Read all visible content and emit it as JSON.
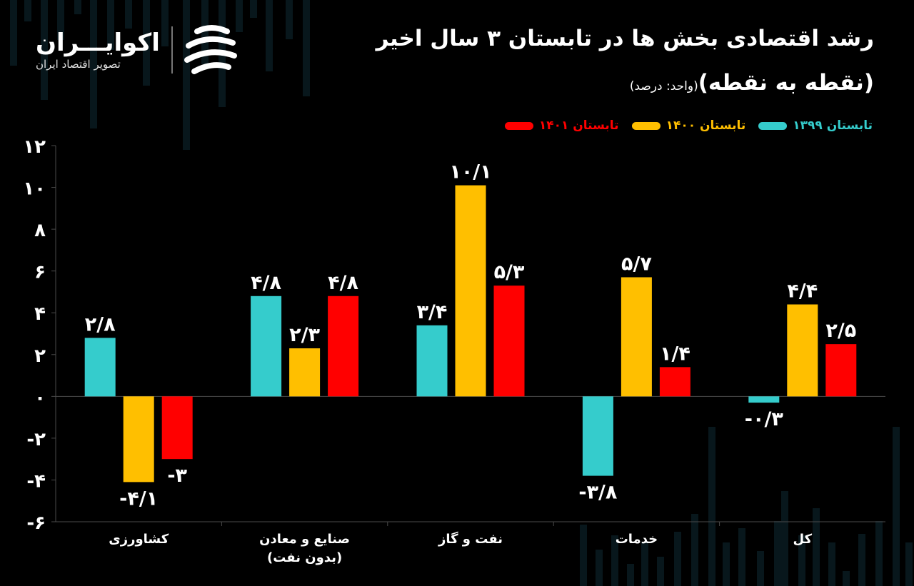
{
  "title": "رشد اقتصادی بخش ها در تابستان ۳ سال اخیر",
  "subtitle_main": "(نقطه به نقطه)",
  "subtitle_unit": "(واحد: درصد)",
  "logo": {
    "name": "اکوایـــران",
    "tagline": "تصویر اقتصاد ایران"
  },
  "colors": {
    "series_1399": "#35CCCC",
    "series_1400": "#FFBF00",
    "series_1401": "#FF0000",
    "background": "#000000",
    "axis": "#4a4a4a"
  },
  "chart_data": {
    "type": "bar",
    "title": "رشد اقتصادی بخش ها در تابستان ۳ سال اخیر",
    "categories": [
      "کشاورزی",
      "صنایع و معادن|(بدون نفت)",
      "نفت و گاز",
      "خدمات",
      "کل"
    ],
    "series": [
      {
        "name": "تابستان ۱۳۹۹",
        "values": [
          2.8,
          4.8,
          3.4,
          -3.8,
          -0.3
        ],
        "labels": [
          "۲/۸",
          "۴/۸",
          "۳/۴",
          "-۳/۸",
          "-۰/۳"
        ]
      },
      {
        "name": "تابستان ۱۴۰۰",
        "values": [
          -4.1,
          2.3,
          10.1,
          5.7,
          4.4
        ],
        "labels": [
          "-۴/۱",
          "۲/۳",
          "۱۰/۱",
          "۵/۷",
          "۴/۴"
        ]
      },
      {
        "name": "تابستان ۱۴۰۱",
        "values": [
          -3,
          4.8,
          5.3,
          1.4,
          2.5
        ],
        "labels": [
          "-۳",
          "۴/۸",
          "۵/۳",
          "۱/۴",
          "۲/۵"
        ]
      }
    ],
    "legend_order": [
      2,
      1,
      0
    ],
    "legend_position": "top-right",
    "ylim": [
      -6,
      12
    ],
    "yticks": [
      12,
      10,
      8,
      6,
      4,
      2,
      0,
      -2,
      -4,
      -6
    ],
    "ytick_labels": [
      "۱۲",
      "۱۰",
      "۸",
      "۶",
      "۴",
      "۲",
      "۰",
      "-۲",
      "-۴",
      "-۶"
    ],
    "grid": false,
    "xlabel": "",
    "ylabel": ""
  }
}
